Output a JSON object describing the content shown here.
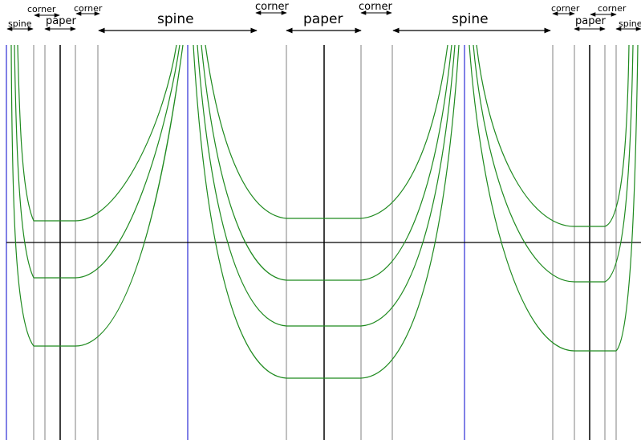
{
  "labels": {
    "left_spine": "spine",
    "left_corner_1": "corner",
    "left_paper": "paper",
    "left_corner_2": "corner",
    "spine_1": "spine",
    "mid_corner_1": "corner",
    "mid_paper": "paper",
    "mid_corner_2": "corner",
    "spine_2": "spine",
    "right_corner_1": "corner",
    "right_paper": "paper",
    "right_corner_2": "corner",
    "right_spine": "spine"
  },
  "colors": {
    "curve": "#1f8a1f",
    "spine_line": "#0000cc",
    "guide_line": "#808080",
    "axis": "#000000"
  }
}
